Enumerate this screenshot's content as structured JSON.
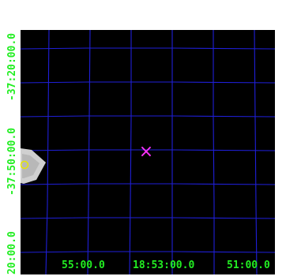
{
  "colors": {
    "background": "#000000",
    "grid": "#1f1fd8",
    "labels": "#22ee22",
    "marker": "#ff33ff",
    "source": "#d0d0d0",
    "source_ring": "#e8e800"
  },
  "axes": {
    "dec_labels": [
      "-37:20:00.0",
      "-37:50:00.0",
      "20:00.0"
    ],
    "ra_labels": [
      "55:00.0",
      "18:53:00.0",
      "51:00.0"
    ]
  },
  "marker": {
    "symbol": "×",
    "icon": "x-cross-marker"
  }
}
